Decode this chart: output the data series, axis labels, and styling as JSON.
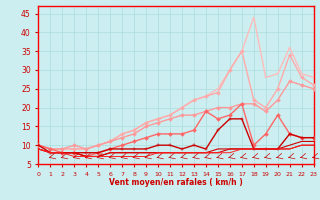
{
  "x": [
    0,
    1,
    2,
    3,
    4,
    5,
    6,
    7,
    8,
    9,
    10,
    11,
    12,
    13,
    14,
    15,
    16,
    17,
    18,
    19,
    20,
    21,
    22,
    23
  ],
  "series": [
    {
      "name": "very_top_nomarker",
      "color": "#ffbbbb",
      "alpha": 1.0,
      "linewidth": 1.0,
      "marker": null,
      "markersize": 0,
      "values": [
        10,
        9,
        9,
        9,
        9,
        10,
        11,
        13,
        14,
        16,
        17,
        18,
        20,
        22,
        23,
        25,
        30,
        35,
        44,
        28,
        29,
        36,
        29,
        28
      ]
    },
    {
      "name": "upper_light_marker",
      "color": "#ffaaaa",
      "alpha": 1.0,
      "linewidth": 1.0,
      "marker": "D",
      "markersize": 2.0,
      "values": [
        10,
        9,
        9,
        9,
        9,
        10,
        11,
        13,
        14,
        16,
        17,
        18,
        20,
        22,
        23,
        24,
        30,
        35,
        22,
        20,
        25,
        34,
        28,
        26
      ]
    },
    {
      "name": "upper_mid_marker",
      "color": "#ff9999",
      "alpha": 1.0,
      "linewidth": 1.0,
      "marker": "D",
      "markersize": 2.0,
      "values": [
        10,
        9,
        9,
        10,
        9,
        10,
        11,
        12,
        13,
        15,
        16,
        17,
        18,
        18,
        19,
        20,
        20,
        21,
        21,
        19,
        22,
        27,
        26,
        25
      ]
    },
    {
      "name": "mid_with_marker",
      "color": "#ff6666",
      "alpha": 1.0,
      "linewidth": 1.0,
      "marker": "D",
      "markersize": 2.0,
      "values": [
        10,
        9,
        8,
        8,
        7,
        8,
        9,
        10,
        11,
        12,
        13,
        13,
        13,
        14,
        19,
        17,
        18,
        21,
        10,
        13,
        18,
        13,
        12,
        12
      ]
    },
    {
      "name": "lower_mid_marker",
      "color": "#cc0000",
      "alpha": 1.0,
      "linewidth": 1.0,
      "marker": "+",
      "markersize": 3.0,
      "values": [
        10,
        8,
        8,
        8,
        8,
        8,
        9,
        9,
        9,
        9,
        10,
        10,
        9,
        10,
        9,
        14,
        17,
        17,
        9,
        9,
        9,
        13,
        12,
        12
      ]
    },
    {
      "name": "flat_line1",
      "color": "#cc0000",
      "alpha": 1.0,
      "linewidth": 0.8,
      "marker": null,
      "markersize": 0,
      "values": [
        9,
        8,
        8,
        8,
        7,
        7,
        8,
        8,
        8,
        8,
        8,
        8,
        8,
        8,
        8,
        9,
        9,
        9,
        9,
        9,
        9,
        10,
        11,
        11
      ]
    },
    {
      "name": "flat_line2",
      "color": "#dd0000",
      "alpha": 1.0,
      "linewidth": 0.8,
      "marker": null,
      "markersize": 0,
      "values": [
        9,
        8,
        8,
        8,
        7,
        7,
        8,
        8,
        8,
        8,
        8,
        8,
        8,
        8,
        8,
        8,
        9,
        9,
        9,
        9,
        9,
        9,
        10,
        10
      ]
    },
    {
      "name": "flat_line3",
      "color": "#ff2222",
      "alpha": 1.0,
      "linewidth": 0.7,
      "marker": null,
      "markersize": 0,
      "values": [
        9,
        8,
        8,
        7,
        7,
        7,
        7,
        7,
        7,
        7,
        8,
        8,
        8,
        8,
        8,
        8,
        8,
        9,
        9,
        9,
        9,
        9,
        10,
        10
      ]
    }
  ],
  "x_arrows": [
    0,
    1,
    2,
    3,
    4,
    5,
    6,
    7,
    8,
    9,
    10,
    11,
    12,
    13,
    14,
    15,
    16,
    17,
    18,
    19,
    20,
    21,
    22,
    23
  ],
  "xlim": [
    0,
    23
  ],
  "ylim": [
    5,
    47
  ],
  "yticks": [
    5,
    10,
    15,
    20,
    25,
    30,
    35,
    40,
    45
  ],
  "xticks": [
    0,
    1,
    2,
    3,
    4,
    5,
    6,
    7,
    8,
    9,
    10,
    11,
    12,
    13,
    14,
    15,
    16,
    17,
    18,
    19,
    20,
    21,
    22,
    23
  ],
  "xlabel": "Vent moyen/en rafales ( km/h )",
  "background_color": "#cceef0",
  "grid_color": "#aadddd",
  "axis_color": "#ff0000",
  "label_color": "#cc0000",
  "tick_color": "#cc0000"
}
